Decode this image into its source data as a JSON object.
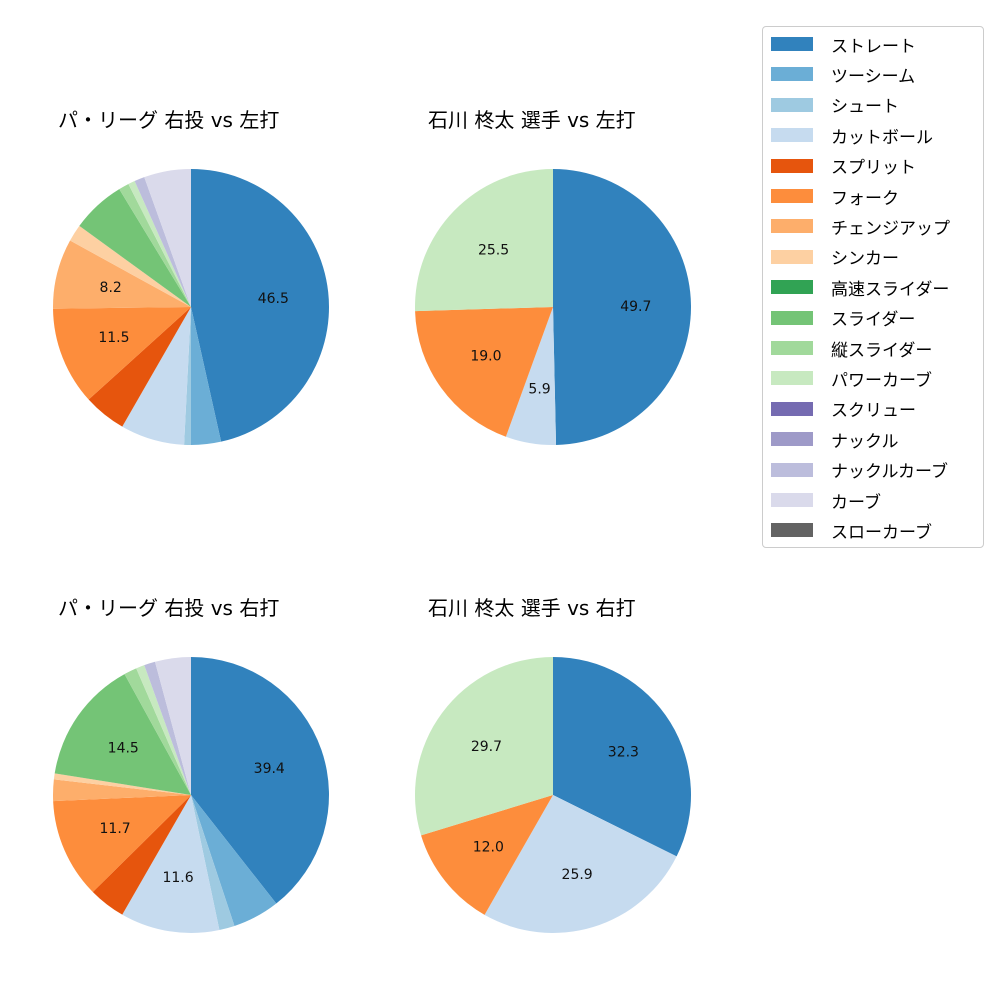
{
  "chart_data": [
    {
      "type": "pie",
      "title": "パ・リーグ 右投 vs 左打",
      "categories": [
        "ストレート",
        "ツーシーム",
        "シュート",
        "カットボール",
        "スプリット",
        "フォーク",
        "チェンジアップ",
        "シンカー",
        "スライダー",
        "縦スライダー",
        "パワーカーブ",
        "ナックルカーブ",
        "カーブ"
      ],
      "values": [
        46.5,
        3.5,
        0.8,
        7.5,
        5.0,
        11.5,
        8.2,
        2.0,
        6.3,
        1.2,
        0.8,
        1.2,
        5.5
      ],
      "shown_labels": [
        "46.5",
        "11.5",
        "8.2"
      ]
    },
    {
      "type": "pie",
      "title": "石川 柊太 選手 vs 左打",
      "categories": [
        "ストレート",
        "カットボール",
        "フォーク",
        "パワーカーブ"
      ],
      "values": [
        49.7,
        5.9,
        19.0,
        25.5
      ],
      "shown_labels": [
        "49.7",
        "5.9",
        "19.0",
        "25.5"
      ]
    },
    {
      "type": "pie",
      "title": "パ・リーグ 右投 vs 右打",
      "categories": [
        "ストレート",
        "ツーシーム",
        "シュート",
        "カットボール",
        "スプリット",
        "フォーク",
        "チェンジアップ",
        "シンカー",
        "スライダー",
        "縦スライダー",
        "パワーカーブ",
        "ナックルカーブ",
        "カーブ"
      ],
      "values": [
        39.4,
        5.5,
        1.8,
        11.6,
        4.3,
        11.7,
        2.5,
        0.7,
        14.5,
        1.5,
        1.0,
        1.3,
        4.2
      ],
      "shown_labels": [
        "39.4",
        "11.6",
        "11.7",
        "14.5"
      ]
    },
    {
      "type": "pie",
      "title": "石川 柊太 選手 vs 右打",
      "categories": [
        "ストレート",
        "カットボール",
        "フォーク",
        "パワーカーブ"
      ],
      "values": [
        32.3,
        25.9,
        12.0,
        29.7
      ],
      "shown_labels": [
        "32.3",
        "25.9",
        "12.0",
        "29.7"
      ]
    }
  ],
  "legend": {
    "items": [
      {
        "label": "ストレート",
        "color": "#3182bd"
      },
      {
        "label": "ツーシーム",
        "color": "#6baed6"
      },
      {
        "label": "シュート",
        "color": "#9ecae1"
      },
      {
        "label": "カットボール",
        "color": "#c6dbef"
      },
      {
        "label": "スプリット",
        "color": "#e6550d"
      },
      {
        "label": "フォーク",
        "color": "#fd8d3c"
      },
      {
        "label": "チェンジアップ",
        "color": "#fdae6b"
      },
      {
        "label": "シンカー",
        "color": "#fdd0a2"
      },
      {
        "label": "高速スライダー",
        "color": "#31a354"
      },
      {
        "label": "スライダー",
        "color": "#74c476"
      },
      {
        "label": "縦スライダー",
        "color": "#a1d99b"
      },
      {
        "label": "パワーカーブ",
        "color": "#c7e9c0"
      },
      {
        "label": "スクリュー",
        "color": "#756bb1"
      },
      {
        "label": "ナックル",
        "color": "#9e9ac8"
      },
      {
        "label": "ナックルカーブ",
        "color": "#bcbddc"
      },
      {
        "label": "カーブ",
        "color": "#dadaeb"
      },
      {
        "label": "スローカーブ",
        "color": "#636363"
      }
    ]
  }
}
